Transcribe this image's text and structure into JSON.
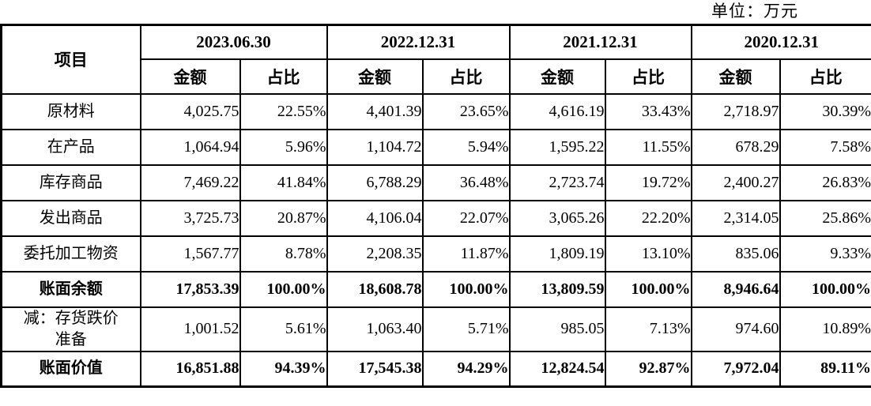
{
  "unit_label": "单位：万元",
  "table": {
    "item_header": "项目",
    "period_headers": [
      "2023.06.30",
      "2022.12.31",
      "2021.12.31",
      "2020.12.31"
    ],
    "sub_headers": {
      "amount": "金额",
      "ratio": "占比"
    },
    "rows": [
      {
        "label": "原材料",
        "bold": false,
        "values": [
          "4,025.75",
          "22.55%",
          "4,401.39",
          "23.65%",
          "4,616.19",
          "33.43%",
          "2,718.97",
          "30.39%"
        ]
      },
      {
        "label": "在产品",
        "bold": false,
        "values": [
          "1,064.94",
          "5.96%",
          "1,104.72",
          "5.94%",
          "1,595.22",
          "11.55%",
          "678.29",
          "7.58%"
        ]
      },
      {
        "label": "库存商品",
        "bold": false,
        "values": [
          "7,469.22",
          "41.84%",
          "6,788.29",
          "36.48%",
          "2,723.74",
          "19.72%",
          "2,400.27",
          "26.83%"
        ]
      },
      {
        "label": "发出商品",
        "bold": false,
        "values": [
          "3,725.73",
          "20.87%",
          "4,106.04",
          "22.07%",
          "3,065.26",
          "22.20%",
          "2,314.05",
          "25.86%"
        ]
      },
      {
        "label": "委托加工物资",
        "bold": false,
        "values": [
          "1,567.77",
          "8.78%",
          "2,208.35",
          "11.87%",
          "1,809.19",
          "13.10%",
          "835.06",
          "9.33%"
        ]
      },
      {
        "label": "账面余额",
        "bold": true,
        "values": [
          "17,853.39",
          "100.00%",
          "18,608.78",
          "100.00%",
          "13,809.59",
          "100.00%",
          "8,946.64",
          "100.00%"
        ]
      },
      {
        "label": "减：存货跌价\n准备",
        "bold": false,
        "values": [
          "1,001.52",
          "5.61%",
          "1,063.40",
          "5.71%",
          "985.05",
          "7.13%",
          "974.60",
          "10.89%"
        ]
      },
      {
        "label": "账面价值",
        "bold": true,
        "values": [
          "16,851.88",
          "94.39%",
          "17,545.38",
          "94.29%",
          "12,824.54",
          "92.87%",
          "7,972.04",
          "89.11%"
        ]
      }
    ]
  }
}
